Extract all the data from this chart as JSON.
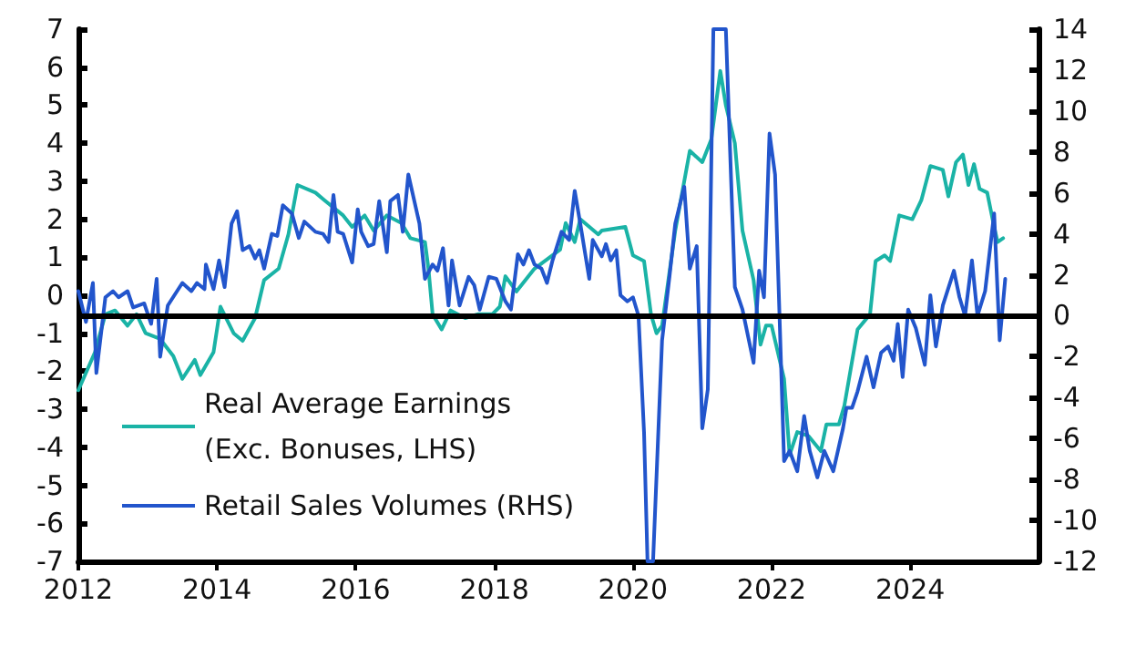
{
  "chart_data": {
    "type": "line",
    "xlim": [
      2012,
      2025.85
    ],
    "xticks": [
      2012,
      2014,
      2016,
      2018,
      2020,
      2022,
      2024
    ],
    "ylim": [
      -7,
      7
    ],
    "yticks": [
      -7,
      -6,
      -5,
      -4,
      -3,
      -2,
      -1,
      0,
      1,
      2,
      3,
      4,
      5,
      6,
      7
    ],
    "y2lim": [
      -12,
      14
    ],
    "y2ticks": [
      -12,
      -10,
      -8,
      -6,
      -4,
      -2,
      0,
      2,
      4,
      6,
      8,
      10,
      12,
      14
    ],
    "grid": false,
    "legend": "bottom left",
    "marker": "none",
    "line_style": "solid",
    "ref_lines": [
      {
        "axis": "y2",
        "value": 0,
        "label": null,
        "color": "#000000"
      }
    ],
    "series": [
      {
        "name": "Real Average Earnings (Exc. Bonuses, LHS)",
        "color": "#1ab3a6",
        "x": [
          2012.0,
          2012.24,
          2012.39,
          2012.53,
          2012.71,
          2012.84,
          2012.97,
          2013.18,
          2013.37,
          2013.5,
          2013.68,
          2013.76,
          2013.95,
          2014.05,
          2014.24,
          2014.37,
          2014.55,
          2014.68,
          2014.89,
          2015.03,
          2015.16,
          2015.42,
          2015.55,
          2015.82,
          2015.95,
          2016.13,
          2016.26,
          2016.45,
          2016.66,
          2016.79,
          2017.0,
          2017.05,
          2017.11,
          2017.24,
          2017.37,
          2017.58,
          2017.76,
          2017.97,
          2018.08,
          2018.16,
          2018.32,
          2018.58,
          2018.95,
          2019.03,
          2019.16,
          2019.24,
          2019.5,
          2019.55,
          2019.89,
          2020.0,
          2020.16,
          2020.26,
          2020.34,
          2020.42,
          2020.61,
          2020.82,
          2021.0,
          2021.13,
          2021.26,
          2021.34,
          2021.47,
          2021.58,
          2021.74,
          2021.84,
          2021.92,
          2022.0,
          2022.18,
          2022.26,
          2022.37,
          2022.53,
          2022.71,
          2022.79,
          2022.97,
          2023.05,
          2023.24,
          2023.42,
          2023.5,
          2023.63,
          2023.71,
          2023.84,
          2024.03,
          2024.16,
          2024.29,
          2024.47,
          2024.55,
          2024.66,
          2024.76,
          2024.84,
          2024.92,
          2025.0,
          2025.11,
          2025.21,
          2025.26,
          2025.34
        ],
        "values": [
          -2.5,
          -1.5,
          -0.5,
          -0.4,
          -0.8,
          -0.5,
          -1.0,
          -1.15,
          -1.6,
          -2.2,
          -1.7,
          -2.1,
          -1.5,
          -0.3,
          -1.0,
          -1.2,
          -0.6,
          0.4,
          0.7,
          1.6,
          2.9,
          2.7,
          2.5,
          2.1,
          1.8,
          2.1,
          1.7,
          2.1,
          1.9,
          1.5,
          1.4,
          0.7,
          -0.5,
          -0.9,
          -0.4,
          -0.6,
          -0.5,
          -0.5,
          -0.3,
          0.5,
          0.1,
          0.7,
          1.2,
          1.9,
          1.4,
          2.0,
          1.6,
          1.7,
          1.8,
          1.05,
          0.9,
          -0.5,
          -1.0,
          -0.8,
          1.7,
          3.8,
          3.5,
          4.1,
          5.9,
          5.0,
          4.0,
          1.7,
          0.4,
          -1.3,
          -0.8,
          -0.8,
          -2.2,
          -4.2,
          -3.6,
          -3.7,
          -4.1,
          -3.4,
          -3.4,
          -2.9,
          -0.9,
          -0.5,
          0.9,
          1.05,
          0.9,
          2.1,
          2.0,
          2.5,
          3.4,
          3.3,
          2.6,
          3.5,
          3.7,
          2.9,
          3.45,
          2.8,
          2.7,
          1.8,
          1.4,
          1.5
        ]
      },
      {
        "name": "Retail Sales Volumes (RHS)",
        "color": "#2255cc",
        "axis": "y2",
        "x": [
          2012.0,
          2012.11,
          2012.21,
          2012.26,
          2012.39,
          2012.5,
          2012.58,
          2012.71,
          2012.79,
          2012.95,
          2013.05,
          2013.13,
          2013.18,
          2013.29,
          2013.5,
          2013.63,
          2013.71,
          2013.82,
          2013.84,
          2013.95,
          2014.03,
          2014.11,
          2014.21,
          2014.29,
          2014.37,
          2014.47,
          2014.55,
          2014.61,
          2014.68,
          2014.79,
          2014.87,
          2014.95,
          2015.08,
          2015.18,
          2015.26,
          2015.42,
          2015.53,
          2015.61,
          2015.68,
          2015.74,
          2015.82,
          2015.95,
          2016.03,
          2016.08,
          2016.18,
          2016.26,
          2016.34,
          2016.45,
          2016.5,
          2016.61,
          2016.68,
          2016.76,
          2016.92,
          2017.0,
          2017.11,
          2017.18,
          2017.26,
          2017.34,
          2017.39,
          2017.5,
          2017.63,
          2017.71,
          2017.79,
          2017.92,
          2018.03,
          2018.16,
          2018.24,
          2018.34,
          2018.42,
          2018.5,
          2018.58,
          2018.68,
          2018.76,
          2018.84,
          2018.97,
          2019.08,
          2019.16,
          2019.24,
          2019.37,
          2019.42,
          2019.55,
          2019.61,
          2019.68,
          2019.76,
          2019.82,
          2019.92,
          2020.0,
          2020.08,
          2020.16,
          2020.21,
          2020.29,
          2020.42,
          2020.53,
          2020.61,
          2020.74,
          2020.82,
          2020.92,
          2021.0,
          2021.08,
          2021.16,
          2021.34,
          2021.47,
          2021.58,
          2021.74,
          2021.82,
          2021.89,
          2021.97,
          2022.05,
          2022.18,
          2022.26,
          2022.37,
          2022.47,
          2022.55,
          2022.66,
          2022.76,
          2022.89,
          2023.03,
          2023.08,
          2023.16,
          2023.24,
          2023.37,
          2023.47,
          2023.58,
          2023.68,
          2023.76,
          2023.82,
          2023.89,
          2023.97,
          2024.08,
          2024.21,
          2024.29,
          2024.37,
          2024.47,
          2024.63,
          2024.71,
          2024.79,
          2024.89,
          2024.97,
          2025.08,
          2025.21,
          2025.29,
          2025.37
        ],
        "values": [
          1.2,
          -0.3,
          1.6,
          -2.8,
          0.9,
          1.2,
          0.9,
          1.2,
          0.4,
          0.6,
          -0.4,
          1.8,
          -2.0,
          0.5,
          1.6,
          1.2,
          1.6,
          1.3,
          2.5,
          1.3,
          2.7,
          1.4,
          4.5,
          5.1,
          3.2,
          3.4,
          2.8,
          3.2,
          2.3,
          4.0,
          3.9,
          5.4,
          5.0,
          3.8,
          4.6,
          4.1,
          4.0,
          3.6,
          5.9,
          4.1,
          4.0,
          2.6,
          5.2,
          4.1,
          3.4,
          3.5,
          5.6,
          3.1,
          5.6,
          5.9,
          4.1,
          6.9,
          4.5,
          1.8,
          2.5,
          2.2,
          3.3,
          0.5,
          2.7,
          0.5,
          1.9,
          1.5,
          0.3,
          1.9,
          1.8,
          0.7,
          0.3,
          3.0,
          2.5,
          3.2,
          2.5,
          2.3,
          1.6,
          2.7,
          4.1,
          3.7,
          6.1,
          4.5,
          1.8,
          3.7,
          2.9,
          3.5,
          2.7,
          3.2,
          1.0,
          0.7,
          0.9,
          0,
          -5.7,
          -12,
          -12,
          -1.2,
          2.0,
          4.5,
          6.3,
          2.3,
          3.4,
          -5.5,
          -3.6,
          14,
          14,
          1.4,
          0.3,
          -2.3,
          2.2,
          0.9,
          8.9,
          6.9,
          -7.1,
          -6.6,
          -7.6,
          -4.9,
          -6.6,
          -7.9,
          -6.6,
          -7.6,
          -5.5,
          -4.5,
          -4.5,
          -3.7,
          -2.0,
          -3.5,
          -1.8,
          -1.5,
          -2.2,
          -0.4,
          -3.0,
          0.3,
          -0.6,
          -2.4,
          1.0,
          -1.5,
          0.5,
          2.2,
          0.9,
          0,
          2.7,
          0,
          1.2,
          5.0,
          -1.2,
          1.8
        ]
      }
    ]
  }
}
